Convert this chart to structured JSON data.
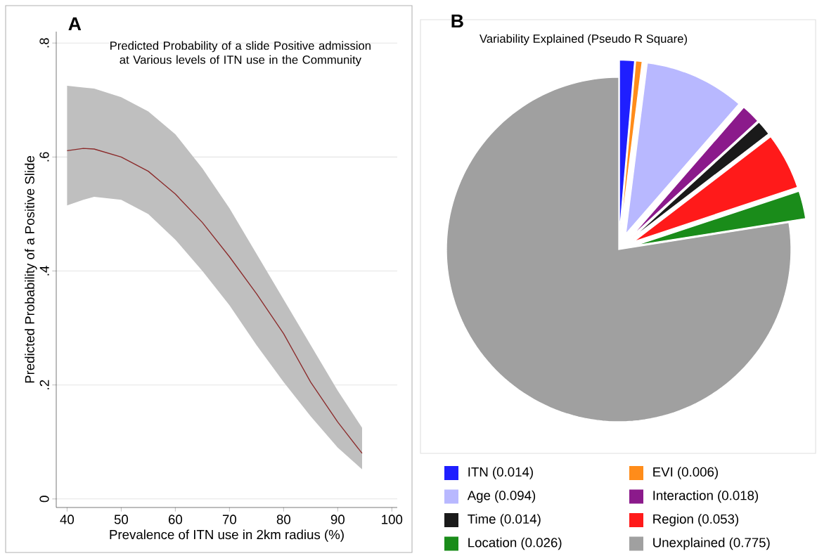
{
  "chart_data": [
    {
      "type": "line",
      "title": "Predicted Probability of a slide Positive admission at Various levels of ITN use in the Community",
      "xlabel": "Prevalence of ITN use in 2km radius (%)",
      "ylabel": "Predicted Probability of a Positive Slide",
      "annotations": [
        "A"
      ],
      "x": [
        40,
        43,
        45,
        50,
        55,
        60,
        65,
        70,
        75,
        80,
        85,
        90,
        94.5
      ],
      "series": [
        {
          "color": "#8b2a2a",
          "values": [
            0.611,
            0.615,
            0.614,
            0.6,
            0.575,
            0.535,
            0.485,
            0.425,
            0.36,
            0.29,
            0.205,
            0.135,
            0.08
          ],
          "lower": [
            0.515,
            0.525,
            0.53,
            0.525,
            0.5,
            0.455,
            0.4,
            0.34,
            0.27,
            0.205,
            0.145,
            0.09,
            0.052
          ],
          "upper": [
            0.725,
            0.722,
            0.72,
            0.705,
            0.68,
            0.64,
            0.58,
            0.51,
            0.43,
            0.35,
            0.27,
            0.19,
            0.125
          ]
        }
      ],
      "xlim": [
        38,
        101
      ],
      "ylim": [
        -0.015,
        0.82
      ],
      "xticks": [
        40,
        50,
        60,
        70,
        80,
        90,
        100
      ],
      "yticks": [
        0,
        {
          "value": 0.2,
          "label": ".2"
        },
        {
          "value": 0.4,
          "label": ".4"
        },
        {
          "value": 0.6,
          "label": ".6"
        },
        {
          "value": 0.8,
          "label": ".8"
        }
      ],
      "grid": "y"
    },
    {
      "type": "pie",
      "title": "Variability Explained (Pseudo R Square)",
      "annotations": [
        "B"
      ],
      "categories": [
        "ITN (0.014)",
        "EVI (0.006)",
        "Age (0.094)",
        "Interaction (0.018)",
        "Time (0.014)",
        "Region (0.053)",
        "Location (0.026)",
        "Unexplained (0.775)"
      ],
      "values": [
        0.014,
        0.006,
        0.094,
        0.018,
        0.014,
        0.053,
        0.026,
        0.775
      ],
      "colors": [
        "#1f1fff",
        "#ff8c1a",
        "#b8b8ff",
        "#8b1a8b",
        "#1a1a1a",
        "#ff1a1a",
        "#1a8c1a",
        "#a0a0a0"
      ],
      "legend": "bottom"
    }
  ]
}
